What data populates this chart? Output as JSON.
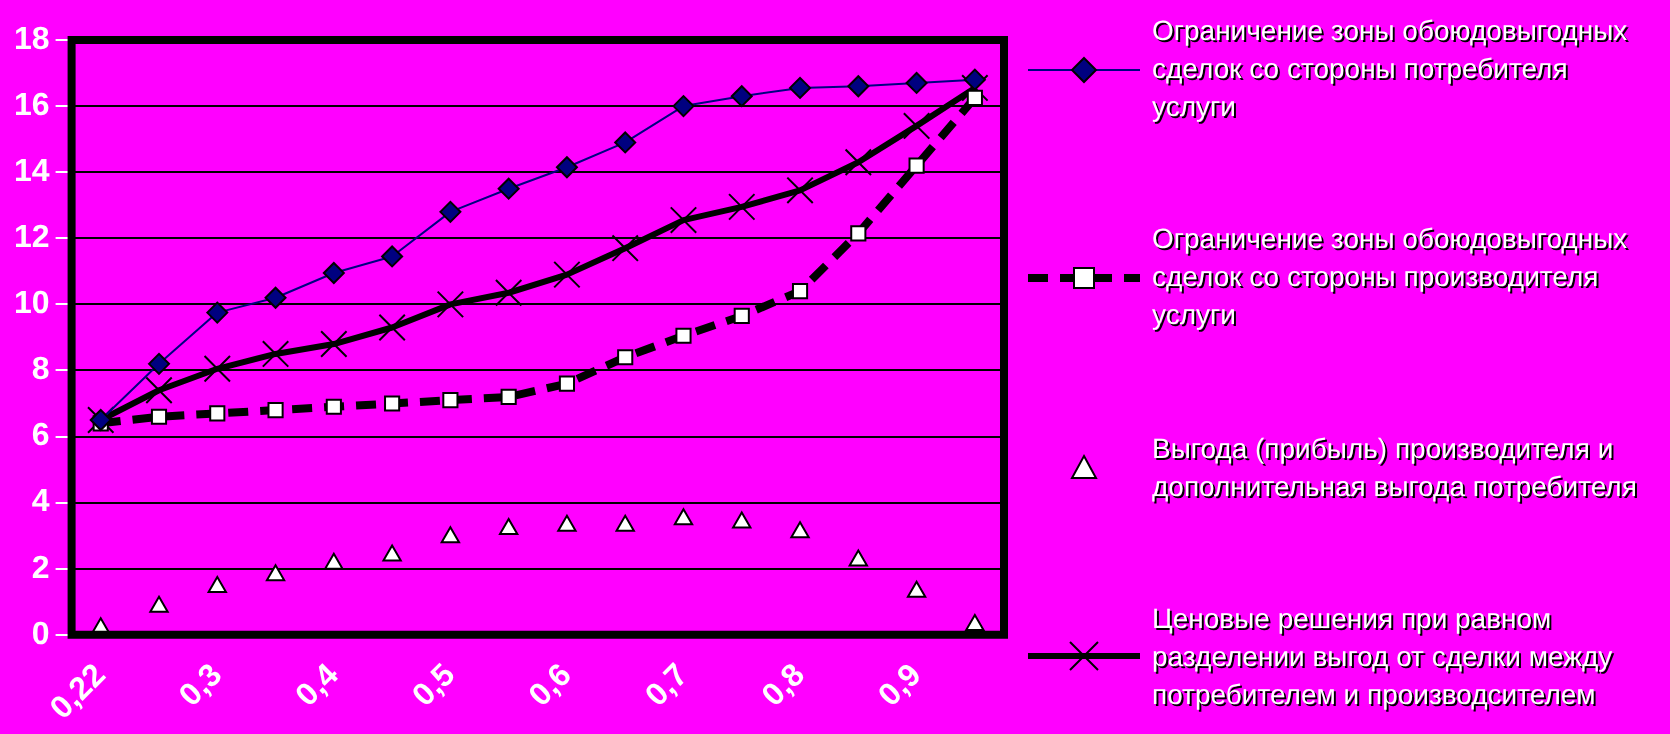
{
  "chart_data": {
    "type": "line",
    "categories": [
      "0,22",
      null,
      "0,3",
      null,
      "0,4",
      null,
      "0,5",
      null,
      "0,6",
      null,
      "0,7",
      null,
      "0,8",
      null,
      "0,9",
      null
    ],
    "series": [
      {
        "name": "Ограничение зоны обоюдовыгодных сделок со стороны потребителя услуги",
        "color": "#000080",
        "marker": "diamond",
        "line_style": "solid",
        "values": [
          6.5,
          8.2,
          9.75,
          10.2,
          10.95,
          11.45,
          12.8,
          13.5,
          14.15,
          14.9,
          16.0,
          16.3,
          16.55,
          16.6,
          16.7,
          16.8
        ]
      },
      {
        "name": "Ограничение зоны обоюдовыгодных сделок со стороны производителя услуги",
        "color": "#000000",
        "marker": "square",
        "line_style": "dashed",
        "values": [
          6.4,
          6.6,
          6.7,
          6.8,
          6.9,
          7.0,
          7.1,
          7.2,
          7.6,
          8.4,
          9.05,
          9.65,
          10.4,
          12.15,
          14.2,
          16.25
        ]
      },
      {
        "name": "Выгода (прибыль) производителя и дополнительная выгода потребителя",
        "type": "scatter",
        "color": "#ffffff",
        "marker": "triangle",
        "values": [
          0.2,
          0.85,
          1.45,
          1.8,
          2.15,
          2.4,
          2.95,
          3.2,
          3.3,
          3.3,
          3.5,
          3.4,
          3.1,
          2.25,
          1.3,
          0.3
        ]
      },
      {
        "name": "Ценовые решения при равном разделении выгод от сделки между потребителем и производсителем",
        "color": "#000000",
        "marker": "cross",
        "line_style": "solid",
        "values": [
          6.5,
          7.4,
          8.05,
          8.5,
          8.8,
          9.3,
          10.0,
          10.35,
          10.9,
          11.7,
          12.55,
          12.95,
          13.45,
          14.3,
          15.4,
          16.55
        ]
      }
    ],
    "ylim": [
      0,
      18
    ],
    "yticks": [
      0,
      2,
      4,
      6,
      8,
      10,
      12,
      14,
      16,
      18
    ],
    "grid": "y",
    "legend": "right"
  }
}
